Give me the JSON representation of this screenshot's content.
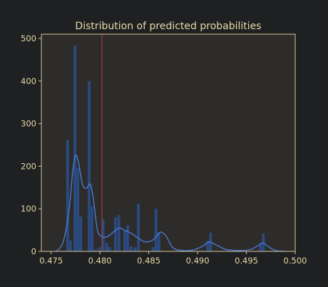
{
  "chart_data": {
    "type": "histogram",
    "title": "Distribution of predicted probabilities",
    "xlabel": "",
    "ylabel": "",
    "xlim": [
      0.474,
      0.5
    ],
    "ylim": [
      0,
      510
    ],
    "xticks": [
      0.475,
      0.48,
      0.485,
      0.49,
      0.495,
      0.5
    ],
    "xtick_labels": [
      "0.475",
      "0.480",
      "0.485",
      "0.490",
      "0.495",
      "0.500"
    ],
    "yticks": [
      0,
      100,
      200,
      300,
      400,
      500
    ],
    "ytick_labels": [
      "0",
      "100",
      "200",
      "300",
      "400",
      "500"
    ],
    "grid": false,
    "legend": "none",
    "threshold_line_x": 0.4802,
    "histogram": {
      "bin_width": 0.0003,
      "bins": [
        {
          "x": 0.4767,
          "count": 262
        },
        {
          "x": 0.477,
          "count": 25
        },
        {
          "x": 0.47745,
          "count": 483
        },
        {
          "x": 0.47775,
          "count": 197
        },
        {
          "x": 0.47805,
          "count": 82
        },
        {
          "x": 0.4789,
          "count": 400
        },
        {
          "x": 0.4792,
          "count": 106
        },
        {
          "x": 0.47955,
          "count": 5
        },
        {
          "x": 0.47995,
          "count": 10
        },
        {
          "x": 0.48035,
          "count": 75
        },
        {
          "x": 0.4807,
          "count": 20
        },
        {
          "x": 0.481,
          "count": 10
        },
        {
          "x": 0.4816,
          "count": 80
        },
        {
          "x": 0.48195,
          "count": 85
        },
        {
          "x": 0.48255,
          "count": 50
        },
        {
          "x": 0.48285,
          "count": 62
        },
        {
          "x": 0.4832,
          "count": 12
        },
        {
          "x": 0.4836,
          "count": 10
        },
        {
          "x": 0.48395,
          "count": 112
        },
        {
          "x": 0.48545,
          "count": 10
        },
        {
          "x": 0.48575,
          "count": 100
        },
        {
          "x": 0.48605,
          "count": 45
        },
        {
          "x": 0.49105,
          "count": 25
        },
        {
          "x": 0.49135,
          "count": 44
        },
        {
          "x": 0.49645,
          "count": 18
        },
        {
          "x": 0.49675,
          "count": 42
        }
      ]
    },
    "kde": {
      "x": [
        0.4755,
        0.4762,
        0.4768,
        0.4772,
        0.4775,
        0.4778,
        0.4782,
        0.4786,
        0.479,
        0.4793,
        0.4797,
        0.48,
        0.4805,
        0.481,
        0.4815,
        0.482,
        0.4825,
        0.483,
        0.4835,
        0.484,
        0.4845,
        0.485,
        0.4855,
        0.486,
        0.4863,
        0.4868,
        0.4875,
        0.4885,
        0.4895,
        0.4905,
        0.4912,
        0.492,
        0.493,
        0.4945,
        0.4955,
        0.4962,
        0.4967,
        0.4972,
        0.498,
        0.499
      ],
      "y": [
        0,
        20,
        90,
        185,
        225,
        210,
        158,
        148,
        158,
        128,
        55,
        38,
        33,
        38,
        48,
        55,
        50,
        45,
        38,
        30,
        23,
        23,
        28,
        42,
        45,
        35,
        8,
        2,
        3,
        12,
        22,
        14,
        4,
        2,
        5,
        14,
        20,
        12,
        2,
        0
      ]
    },
    "colors": {
      "bars": "#2a4a80",
      "kde": "#4a7ad0",
      "threshold_line": "#b04040",
      "axes_face": "#2e2c2b",
      "axes_edge": "#d8c89a",
      "text": "#e8d9a8"
    }
  }
}
